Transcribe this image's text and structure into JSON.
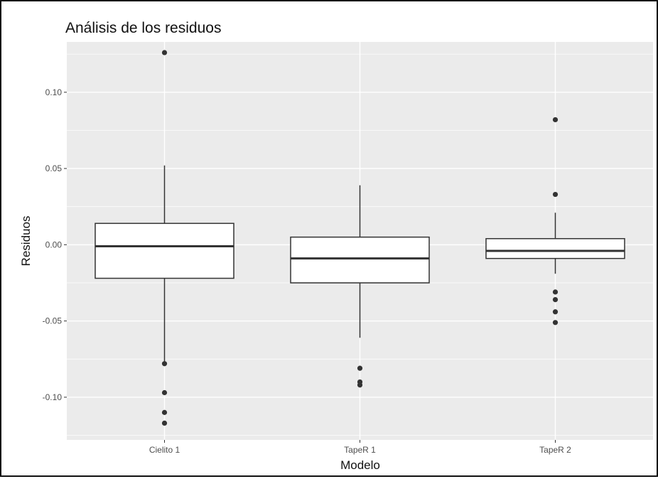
{
  "chart_data": {
    "type": "boxplot",
    "title": "Análisis de los residuos",
    "xlabel": "Modelo",
    "ylabel": "Residuos",
    "ylim": [
      -0.128,
      0.133
    ],
    "yticks": [
      0.1,
      0.05,
      0.0,
      -0.05,
      -0.1
    ],
    "ytick_labels": [
      "0.10",
      "0.05",
      "0.00",
      "-0.05",
      "-0.10"
    ],
    "grid": true,
    "colors": {
      "panel": "#ebebeb",
      "grid_major": "#ffffff",
      "box_fill": "#ffffff",
      "box_stroke": "#333333",
      "outlier": "#333333",
      "axis_text": "#4d4d4d"
    },
    "categories": [
      "Cielito 1",
      "TapeR 1",
      "TapeR 2"
    ],
    "boxes": [
      {
        "name": "Cielito 1",
        "whisker_low": -0.078,
        "q1": -0.022,
        "median": -0.001,
        "q3": 0.014,
        "whisker_high": 0.052,
        "outliers": [
          0.126,
          -0.078,
          -0.097,
          -0.11,
          -0.117
        ]
      },
      {
        "name": "TapeR 1",
        "whisker_low": -0.061,
        "q1": -0.025,
        "median": -0.009,
        "q3": 0.005,
        "whisker_high": 0.039,
        "outliers": [
          -0.081,
          -0.09,
          -0.092
        ]
      },
      {
        "name": "TapeR 2",
        "whisker_low": -0.019,
        "q1": -0.009,
        "median": -0.004,
        "q3": 0.004,
        "whisker_high": 0.021,
        "outliers": [
          0.082,
          0.033,
          -0.031,
          -0.036,
          -0.044,
          -0.051
        ]
      }
    ]
  }
}
